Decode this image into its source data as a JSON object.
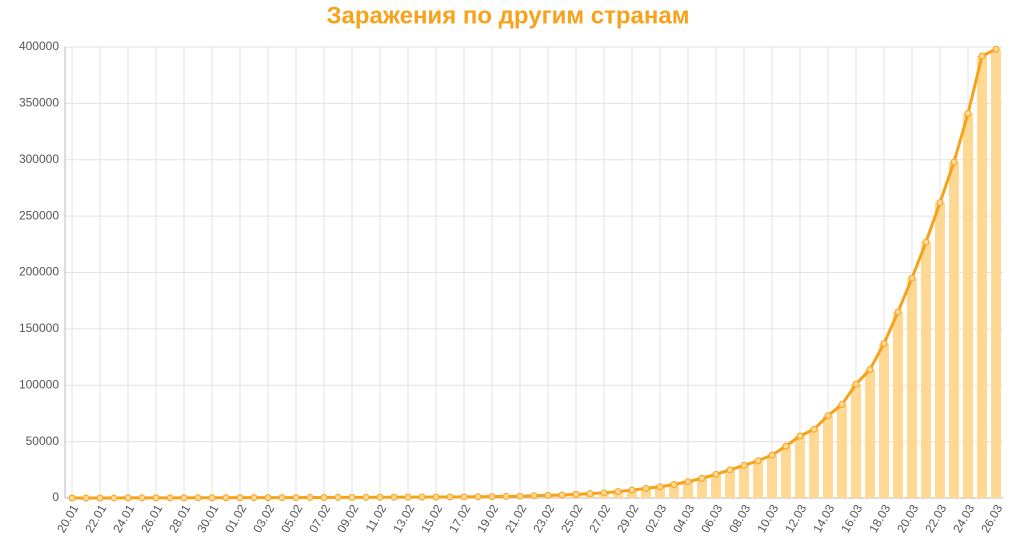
{
  "chart_data": {
    "type": "bar",
    "title": "Заражения по другим странам",
    "categories": [
      "20.01",
      null,
      "22.01",
      null,
      "24.01",
      null,
      "26.01",
      null,
      "28.01",
      null,
      "30.01",
      null,
      "01.02",
      null,
      "03.02",
      null,
      "05.02",
      null,
      "07.02",
      null,
      "09.02",
      null,
      "11.02",
      null,
      "13.02",
      null,
      "15.02",
      null,
      "17.02",
      null,
      "19.02",
      null,
      "21.02",
      null,
      "23.02",
      null,
      "25.02",
      null,
      "27.02",
      null,
      "29.02",
      null,
      "02.03",
      null,
      "04.03",
      null,
      "06.03",
      null,
      "08.03",
      null,
      "10.03",
      null,
      "12.03",
      null,
      "14.03",
      null,
      "16.03",
      null,
      "18.03",
      null,
      "20.03",
      null,
      "22.03",
      null,
      "24.03",
      null,
      "26.03"
    ],
    "values": [
      10,
      20,
      30,
      40,
      60,
      80,
      100,
      120,
      150,
      170,
      200,
      250,
      280,
      300,
      320,
      350,
      380,
      400,
      450,
      500,
      550,
      600,
      650,
      700,
      750,
      800,
      850,
      900,
      1000,
      1100,
      1200,
      1400,
      1600,
      2000,
      2300,
      2700,
      3200,
      3900,
      4600,
      5700,
      7000,
      8500,
      10000,
      12000,
      14500,
      17500,
      21000,
      25000,
      29000,
      33000,
      38000,
      46000,
      55000,
      61000,
      73000,
      83000,
      101000,
      114000,
      137000,
      165000,
      195000,
      227000,
      262000,
      298000,
      341000,
      392000,
      398000
    ],
    "bar_color": "#ffd993",
    "line_color": "#f7a21b",
    "ylim": [
      0,
      400000
    ],
    "yticks": [
      0,
      50000,
      100000,
      150000,
      200000,
      250000,
      300000,
      350000,
      400000
    ],
    "grid": true
  }
}
